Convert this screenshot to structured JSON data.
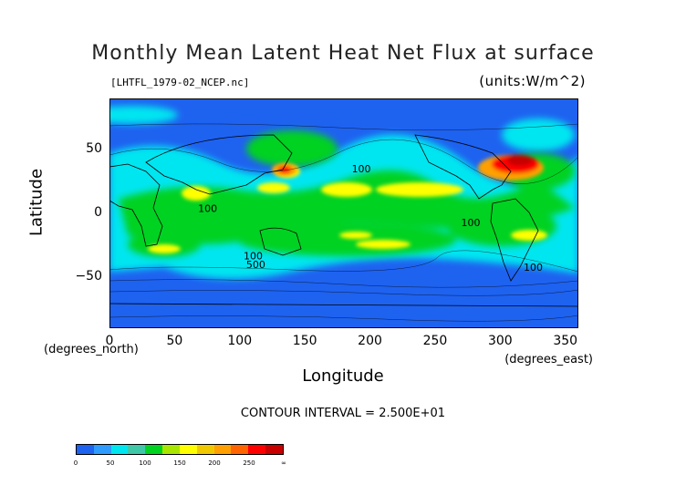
{
  "title": "Monthly Mean Latent Heat Net Flux at surface",
  "file_label": "[LHTFL_1979-02_NCEP.nc]",
  "units_label": "(units:W/m^2)",
  "y_axis": {
    "label": "Latitude",
    "units_label": "(degrees_north)",
    "ticks": [
      {
        "value": 50,
        "label": "50"
      },
      {
        "value": 0,
        "label": "0"
      },
      {
        "value": -50,
        "label": "−50"
      }
    ],
    "range": [
      -90,
      90
    ]
  },
  "x_axis": {
    "label": "Longitude",
    "units_label": "(degrees_east)",
    "ticks": [
      {
        "value": 0,
        "label": "0"
      },
      {
        "value": 50,
        "label": "50"
      },
      {
        "value": 100,
        "label": "100"
      },
      {
        "value": 150,
        "label": "150"
      },
      {
        "value": 200,
        "label": "200"
      },
      {
        "value": 250,
        "label": "250"
      },
      {
        "value": 300,
        "label": "300"
      },
      {
        "value": 350,
        "label": "350"
      }
    ],
    "range": [
      0,
      360
    ]
  },
  "contour_interval_text": "CONTOUR INTERVAL = 2.500E+01",
  "contour_labels": [
    {
      "text": "100",
      "lon": 186,
      "lat": 32
    },
    {
      "text": "100",
      "lon": 68,
      "lat": 1
    },
    {
      "text": "100",
      "lon": 270,
      "lat": -10
    },
    {
      "text": "100",
      "lon": 103,
      "lat": -36
    },
    {
      "text": "500",
      "lon": 105,
      "lat": -43
    },
    {
      "text": "100",
      "lon": 318,
      "lat": -45
    }
  ],
  "colorbar": {
    "colors": [
      "#1e62f0",
      "#2f9bff",
      "#00e6f0",
      "#3ec8a8",
      "#00d220",
      "#a8e600",
      "#ffff00",
      "#f0c800",
      "#ffa000",
      "#ff6400",
      "#ff0000",
      "#c80000"
    ],
    "ticks": [
      "0",
      "50",
      "100",
      "150",
      "200",
      "250",
      "∞"
    ]
  },
  "colors": {
    "ocean_low": "#1e62f0",
    "land_contour": "#000000"
  }
}
